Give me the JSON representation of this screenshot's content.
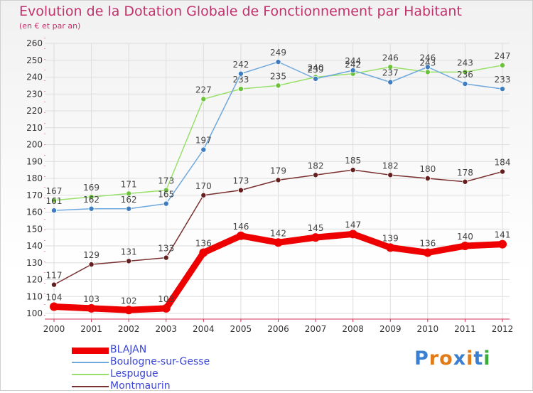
{
  "title": "Evolution de la Dotation Globale de Fonctionnement par Habitant",
  "subtitle": "(en € et par an)",
  "colors": {
    "title": "#c2326c",
    "axis": "#cc3355",
    "legend_text": "#3b46d8",
    "label": "#444444",
    "grid": "#dddddd"
  },
  "chart_data": {
    "type": "line",
    "x": [
      2000,
      2001,
      2002,
      2003,
      2004,
      2005,
      2006,
      2007,
      2008,
      2009,
      2010,
      2011,
      2012
    ],
    "ylim": [
      100,
      260
    ],
    "yticks": [
      100,
      110,
      120,
      130,
      140,
      150,
      160,
      170,
      180,
      190,
      200,
      210,
      220,
      230,
      240,
      250,
      260
    ],
    "grid": true,
    "legend_position": "bottom-left",
    "series": [
      {
        "name": "BLAJAN",
        "color": "#ee0000",
        "marker": "#ee0000",
        "values": [
          104,
          103,
          102,
          103,
          136,
          146,
          142,
          145,
          147,
          139,
          136,
          140,
          141
        ]
      },
      {
        "name": "Boulogne-sur-Gesse",
        "color": "#6fa8dc",
        "marker": "#3d7dc0",
        "values": [
          161,
          162,
          162,
          165,
          197,
          242,
          249,
          239,
          244,
          237,
          246,
          236,
          233
        ]
      },
      {
        "name": "Lespugue",
        "color": "#99e06a",
        "marker": "#6cc33a",
        "values": [
          167,
          169,
          171,
          173,
          227,
          233,
          235,
          240,
          242,
          246,
          243,
          243,
          247
        ]
      },
      {
        "name": "Montmaurin",
        "color": "#7a3030",
        "marker": "#661f1f",
        "values": [
          117,
          129,
          131,
          133,
          170,
          173,
          179,
          182,
          185,
          182,
          180,
          178,
          184
        ]
      }
    ]
  },
  "logo": {
    "text": "Proxiti",
    "colors": [
      "#3a7fd0",
      "#e07b1a",
      "#e07b1a",
      "#3a7fd0",
      "#e07b1a",
      "#3a7fd0",
      "#3aaa3a"
    ]
  }
}
